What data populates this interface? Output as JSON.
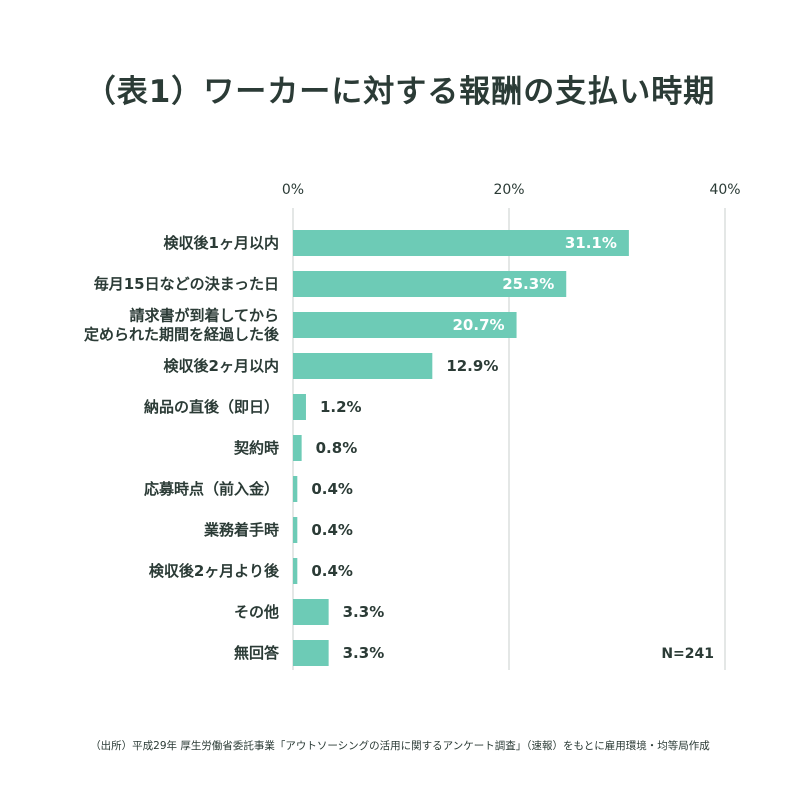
{
  "chart_data": {
    "type": "bar",
    "orientation": "horizontal",
    "title": "（表1）ワーカーに対する報酬の支払い時期",
    "categories": [
      [
        "検収後1ヶ月以内"
      ],
      [
        "毎月15日などの決まった日"
      ],
      [
        "請求書が到着してから",
        "定められた期間を経過した後"
      ],
      [
        "検収後2ヶ月以内"
      ],
      [
        "納品の直後（即日）"
      ],
      [
        "契約時"
      ],
      [
        "応募時点（前入金）"
      ],
      [
        "業務着手時"
      ],
      [
        "検収後2ヶ月より後"
      ],
      [
        "その他"
      ],
      [
        "無回答"
      ]
    ],
    "values": [
      31.1,
      25.3,
      20.7,
      12.9,
      1.2,
      0.8,
      0.4,
      0.4,
      0.4,
      3.3,
      3.3
    ],
    "value_labels": [
      "31.1%",
      "25.3%",
      "20.7%",
      "12.9%",
      "1.2%",
      "0.8%",
      "0.4%",
      "0.4%",
      "0.4%",
      "3.3%",
      "3.3%"
    ],
    "xlim": [
      0,
      40
    ],
    "xticks": [
      0,
      20,
      40
    ],
    "xtick_labels": [
      "0%",
      "20%",
      "40%"
    ],
    "grid": true,
    "bar_color": "#6dcbb6",
    "annotation": "N=241"
  },
  "source_note": "（出所）平成29年 厚生労働省委託事業「アウトソーシングの活用に関するアンケート調査」（速報）をもとに雇用環境・均等局作成"
}
